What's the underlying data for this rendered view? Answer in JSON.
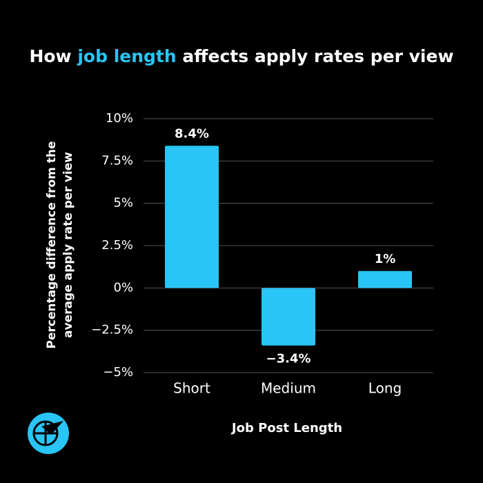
{
  "chart_data": {
    "type": "bar",
    "title": {
      "before": "How",
      "highlight": "job length",
      "after": "affects apply rates per view"
    },
    "title_color": "#ffffff",
    "highlight_color": "#29c5f6",
    "xlabel": "Job Post Length",
    "ylabel": [
      "Percentage difference from the",
      "average apply rate per view"
    ],
    "categories": [
      "Short",
      "Medium",
      "Long"
    ],
    "values": [
      8.4,
      -3.4,
      1
    ],
    "value_labels": [
      "8.4%",
      "−3.4%",
      "1%"
    ],
    "color": "#29c5f6",
    "ylim": [
      -5,
      10
    ],
    "yticks": [
      {
        "value": -5,
        "label": "−5%"
      },
      {
        "value": -2.5,
        "label": "−2.5%"
      },
      {
        "value": 0,
        "label": "0%"
      },
      {
        "value": 2.5,
        "label": "2.5%"
      },
      {
        "value": 5,
        "label": "5%"
      },
      {
        "value": 7.5,
        "label": "7.5%"
      },
      {
        "value": 10,
        "label": "10%"
      }
    ],
    "grid": true
  }
}
